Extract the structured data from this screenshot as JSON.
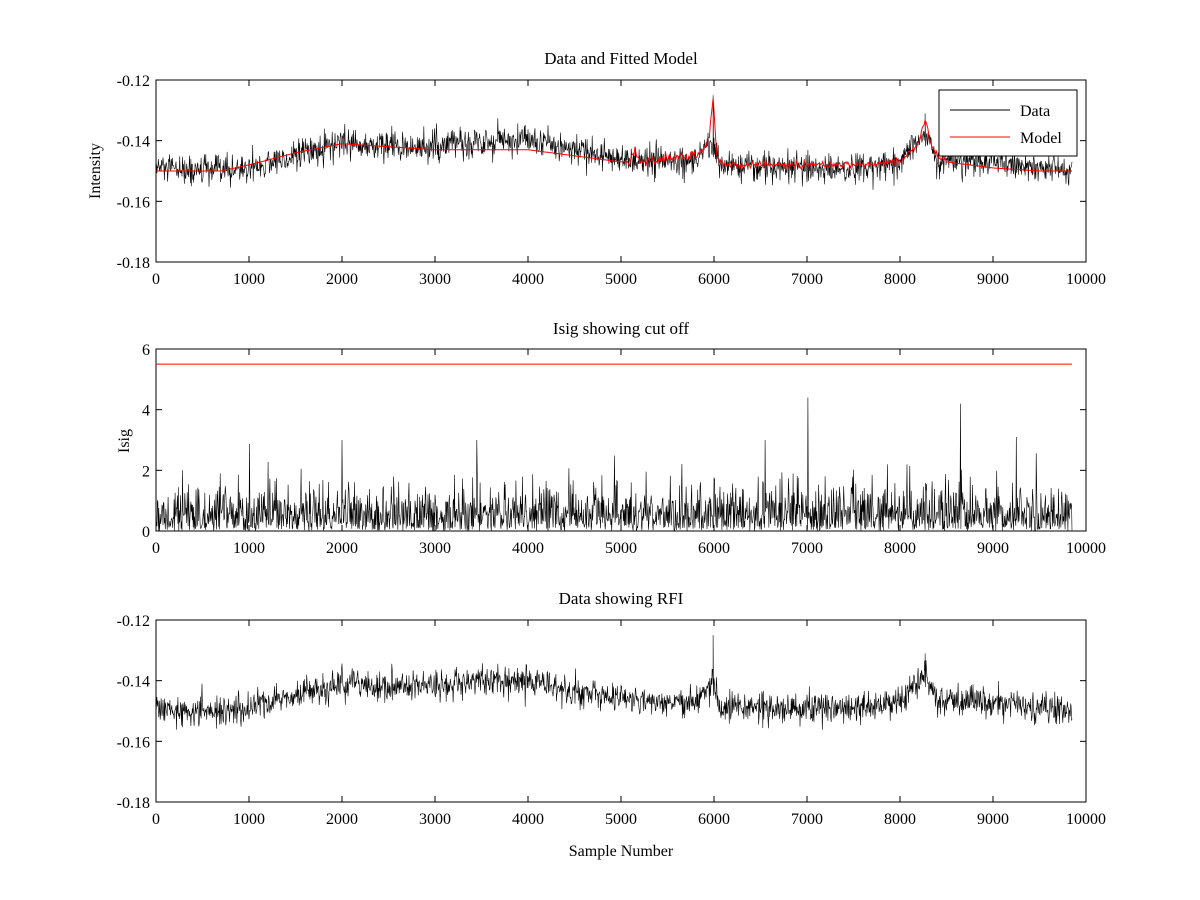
{
  "chart_data": [
    {
      "type": "line",
      "title": "Data and Fitted Model",
      "xlabel": "",
      "ylabel": "Intensity",
      "xlim": [
        0,
        10000
      ],
      "ylim": [
        -0.18,
        -0.12
      ],
      "xticks": [
        "0",
        "1000",
        "2000",
        "3000",
        "4000",
        "5000",
        "6000",
        "7000",
        "8000",
        "9000",
        "10000"
      ],
      "yticks": [
        "-0.18",
        "-0.16",
        "-0.14",
        "-0.12"
      ],
      "legend": {
        "position": "top-right",
        "entries": [
          "Data",
          "Model"
        ]
      },
      "series": [
        {
          "name": "Data",
          "color": "#000000",
          "kind": "noisy",
          "x": [
            0,
            300,
            700,
            1000,
            1500,
            2000,
            2500,
            3000,
            3500,
            4000,
            4500,
            5000,
            5500,
            5800,
            5900,
            6000,
            6050,
            6500,
            7000,
            7500,
            8000,
            8150,
            8270,
            8400,
            9000,
            9500,
            9850
          ],
          "baseline": [
            -0.149,
            -0.15,
            -0.15,
            -0.149,
            -0.145,
            -0.141,
            -0.142,
            -0.142,
            -0.14,
            -0.14,
            -0.143,
            -0.146,
            -0.147,
            -0.146,
            -0.144,
            -0.141,
            -0.148,
            -0.149,
            -0.149,
            -0.149,
            -0.147,
            -0.141,
            -0.138,
            -0.146,
            -0.147,
            -0.149,
            -0.15
          ],
          "noise_amplitude": 0.006,
          "spikes": [
            [
              5990,
              -0.125
            ],
            [
              8270,
              -0.131
            ]
          ]
        },
        {
          "name": "Model",
          "color": "#ff0000",
          "kind": "smooth",
          "x": [
            0,
            300,
            700,
            1000,
            1500,
            2000,
            2500,
            3000,
            3500,
            4000,
            4500,
            5000,
            5100,
            5150,
            5200,
            5500,
            5800,
            5900,
            5950,
            5990,
            6030,
            6100,
            6500,
            7000,
            7500,
            8000,
            8100,
            8200,
            8270,
            8330,
            8400,
            8500,
            9000,
            9500,
            9850
          ],
          "y": [
            -0.15,
            -0.15,
            -0.15,
            -0.148,
            -0.144,
            -0.141,
            -0.142,
            -0.143,
            -0.143,
            -0.143,
            -0.145,
            -0.147,
            -0.147,
            -0.143,
            -0.147,
            -0.146,
            -0.145,
            -0.142,
            -0.138,
            -0.126,
            -0.145,
            -0.148,
            -0.148,
            -0.148,
            -0.148,
            -0.147,
            -0.144,
            -0.141,
            -0.133,
            -0.141,
            -0.145,
            -0.147,
            -0.149,
            -0.15,
            -0.15
          ]
        }
      ]
    },
    {
      "type": "line",
      "title": "Isig showing cut off",
      "xlabel": "",
      "ylabel": "Isig",
      "xlim": [
        0,
        10000
      ],
      "ylim": [
        0,
        6
      ],
      "xticks": [
        "0",
        "1000",
        "2000",
        "3000",
        "4000",
        "5000",
        "6000",
        "7000",
        "8000",
        "9000",
        "10000"
      ],
      "yticks": [
        "0",
        "2",
        "4",
        "6"
      ],
      "series": [
        {
          "color": "#000000",
          "kind": "rectified-noise",
          "x_range": [
            0,
            9850
          ],
          "typical_max": 2.0,
          "peaks": [
            [
              2000,
              3.0
            ],
            [
              3450,
              3.0
            ],
            [
              6550,
              3.0
            ],
            [
              7010,
              4.4
            ],
            [
              8650,
              4.2
            ],
            [
              9250,
              3.1
            ]
          ]
        },
        {
          "color": "#ff0000",
          "kind": "cutoff",
          "x": [
            0,
            9850
          ],
          "y": [
            5.5,
            5.5
          ]
        }
      ]
    },
    {
      "type": "line",
      "title": "Data showing RFI",
      "xlabel": "Sample Number",
      "ylabel": "",
      "xlim": [
        0,
        10000
      ],
      "ylim": [
        -0.18,
        -0.12
      ],
      "xticks": [
        "0",
        "1000",
        "2000",
        "3000",
        "4000",
        "5000",
        "6000",
        "7000",
        "8000",
        "9000",
        "10000"
      ],
      "yticks": [
        "-0.18",
        "-0.16",
        "-0.14",
        "-0.12"
      ],
      "series": [
        {
          "color": "#000000",
          "kind": "noisy",
          "x": [
            0,
            300,
            700,
            1000,
            1500,
            2000,
            2500,
            3000,
            3500,
            4000,
            4500,
            5000,
            5500,
            5800,
            5900,
            6000,
            6050,
            6500,
            7000,
            7500,
            8000,
            8150,
            8270,
            8400,
            9000,
            9500,
            9850
          ],
          "baseline": [
            -0.149,
            -0.15,
            -0.15,
            -0.149,
            -0.145,
            -0.141,
            -0.142,
            -0.142,
            -0.14,
            -0.14,
            -0.143,
            -0.146,
            -0.147,
            -0.146,
            -0.144,
            -0.141,
            -0.148,
            -0.149,
            -0.149,
            -0.149,
            -0.147,
            -0.141,
            -0.138,
            -0.146,
            -0.147,
            -0.149,
            -0.15
          ],
          "noise_amplitude": 0.006,
          "spikes": [
            [
              5990,
              -0.125
            ],
            [
              8270,
              -0.131
            ]
          ]
        }
      ]
    }
  ]
}
